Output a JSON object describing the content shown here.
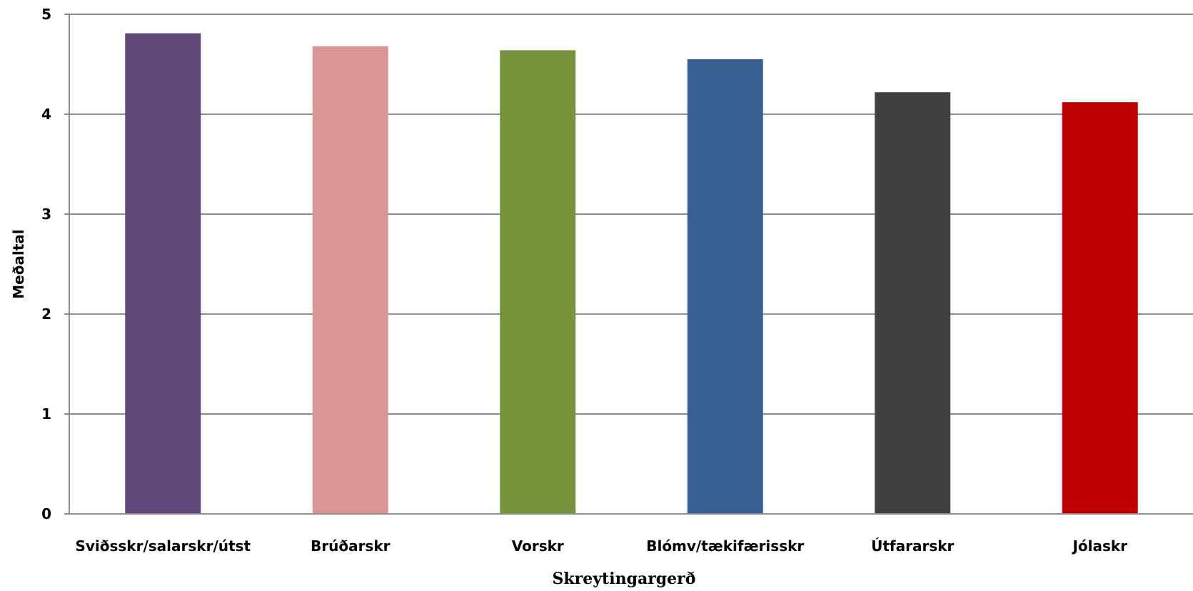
{
  "chart_data": {
    "type": "bar",
    "title": "",
    "xlabel": "Skreytingargerð",
    "ylabel": "Meðaltal",
    "ylim": [
      0,
      5
    ],
    "yticks": [
      0,
      1,
      2,
      3,
      4,
      5
    ],
    "grid": true,
    "categories": [
      "Sviðsskr/salarskr/útst",
      "Brúðarskr",
      "Vorskr",
      "Blómv/tækifærisskr",
      "Útfararskr",
      "Jólaskr"
    ],
    "values": [
      4.81,
      4.68,
      4.64,
      4.55,
      4.22,
      4.12
    ],
    "colors": [
      "#604a7b",
      "#d99694",
      "#77933c",
      "#366092",
      "#404040",
      "#c00000"
    ]
  }
}
